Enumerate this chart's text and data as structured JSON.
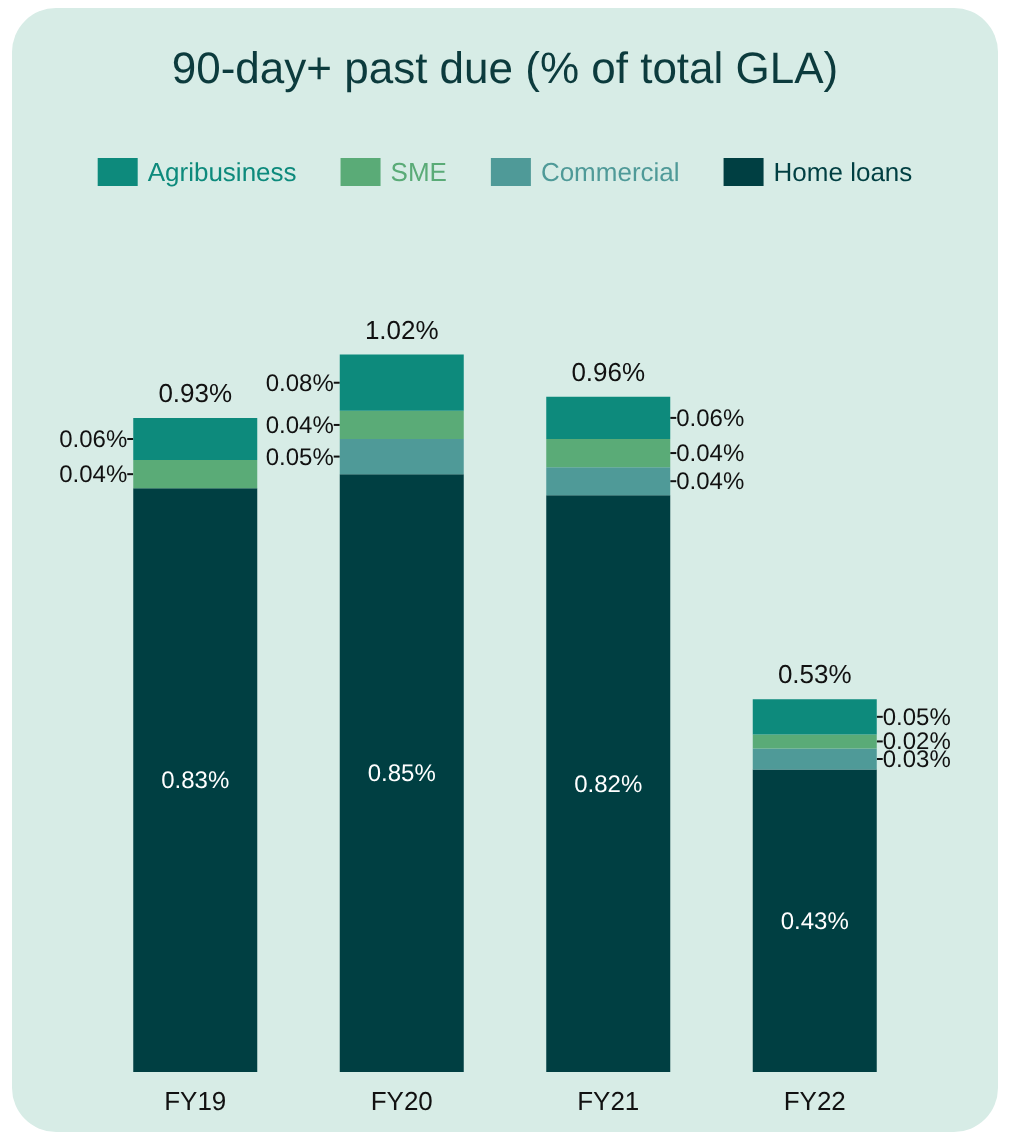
{
  "chart_data": {
    "type": "bar",
    "title": "90-day+ past due (% of total GLA)",
    "stacked": true,
    "legend": "top",
    "categories": [
      "FY19",
      "FY20",
      "FY21",
      "FY22"
    ],
    "series": [
      {
        "name": "Home loans",
        "color": "#003f42",
        "values": [
          0.83,
          0.85,
          0.82,
          0.43
        ],
        "value_labels": [
          "0.83%",
          "0.85%",
          "0.82%",
          "0.43%"
        ]
      },
      {
        "name": "Commercial",
        "color": "#4f9a98",
        "values": [
          0,
          0.05,
          0.04,
          0.03
        ],
        "value_labels": [
          null,
          "0.05%",
          "0.04%",
          "0.03%"
        ]
      },
      {
        "name": "SME",
        "color": "#5aab77",
        "values": [
          0.04,
          0.04,
          0.04,
          0.02
        ],
        "value_labels": [
          "0.04%",
          "0.04%",
          "0.04%",
          "0.02%"
        ]
      },
      {
        "name": "Agribusiness",
        "color": "#0d8a7c",
        "values": [
          0.06,
          0.08,
          0.06,
          0.05
        ],
        "value_labels": [
          "0.06%",
          "0.08%",
          "0.06%",
          "0.05%"
        ]
      }
    ],
    "totals": [
      "0.93%",
      "1.02%",
      "0.96%",
      "0.53%"
    ]
  }
}
